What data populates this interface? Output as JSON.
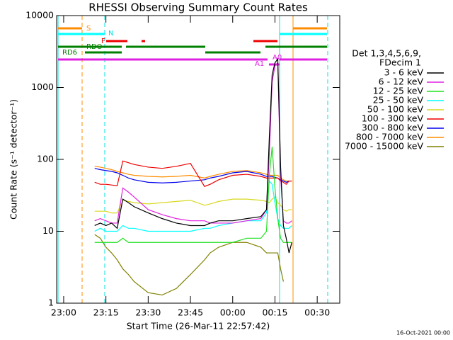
{
  "chart_data": {
    "type": "line",
    "title": "RHESSI Observing Summary Count Rates",
    "x_label": "Start Time (26-Mar-11 22:57:42)",
    "y_label": "Count Rate (s⁻¹ detector⁻¹)",
    "legend_title": [
      "Det 1,3,4,5,6,9,",
      "FDecim 1"
    ],
    "footer": "16-Oct-2021 00:00",
    "flags": [
      "S",
      "N",
      "F",
      "RDO",
      "RD6",
      "A1",
      "A0"
    ],
    "log_y": true,
    "xlim": [
      -2.5,
      98
    ],
    "ylim": [
      1,
      10000
    ],
    "xticks": [
      {
        "value": 0,
        "label": "23:00"
      },
      {
        "value": 15,
        "label": "23:15"
      },
      {
        "value": 30,
        "label": "23:30"
      },
      {
        "value": 45,
        "label": "23:45"
      },
      {
        "value": 60,
        "label": "00:00"
      },
      {
        "value": 75,
        "label": "00:15"
      },
      {
        "value": 90,
        "label": "00:30"
      }
    ],
    "yticks": [
      1,
      10,
      100,
      1000,
      10000
    ],
    "x": [
      11,
      13,
      15,
      17,
      19,
      21,
      23,
      25,
      30,
      35,
      40,
      45,
      50,
      52,
      55,
      60,
      65,
      70,
      72,
      73,
      74,
      75,
      76,
      77,
      78,
      79,
      80,
      81
    ],
    "series": [
      {
        "name": "3 - 6 keV",
        "color": "#000000",
        "values": [
          12,
          13,
          12,
          13,
          11,
          28,
          25,
          22,
          18,
          15,
          13,
          12,
          12,
          13,
          14,
          14,
          15,
          16,
          20,
          200,
          1500,
          2200,
          2500,
          80,
          12,
          8,
          5,
          7
        ]
      },
      {
        "name": "6 - 12 keV",
        "color": "#e020e0",
        "values": [
          14,
          15,
          14,
          13,
          13,
          40,
          35,
          30,
          20,
          17,
          15,
          14,
          14,
          13,
          13,
          13,
          14,
          15,
          20,
          120,
          1200,
          2000,
          2200,
          60,
          14,
          13,
          13,
          14
        ]
      },
      {
        "name": "12 - 25 keV",
        "color": "#20e020",
        "values": [
          7,
          7,
          7,
          7,
          7,
          8,
          7,
          7,
          7,
          7,
          7,
          7,
          7,
          7,
          7,
          7,
          8,
          8,
          10,
          60,
          150,
          40,
          15,
          8,
          7,
          7,
          7,
          7
        ]
      },
      {
        "name": "25 - 50 keV",
        "color": "#00ffff",
        "values": [
          10,
          11,
          10,
          10,
          10,
          12,
          11,
          11,
          10,
          10,
          10,
          10,
          11,
          11,
          12,
          13,
          14,
          14,
          18,
          50,
          45,
          25,
          15,
          12,
          11,
          11,
          11,
          12
        ]
      },
      {
        "name": "50 - 100 keV",
        "color": "#d8d820",
        "values": [
          19,
          19,
          19,
          18,
          18,
          27,
          26,
          25,
          24,
          25,
          26,
          27,
          23,
          24,
          26,
          28,
          28,
          27,
          26,
          25,
          28,
          30,
          25,
          23,
          20,
          19,
          20,
          20
        ]
      },
      {
        "name": "100 - 300 keV",
        "color": "#ee0000",
        "values": [
          48,
          45,
          45,
          44,
          43,
          95,
          90,
          85,
          78,
          75,
          80,
          88,
          42,
          45,
          52,
          60,
          62,
          58,
          55,
          55,
          55,
          55,
          55,
          50,
          48,
          45,
          50,
          50
        ]
      },
      {
        "name": "300 - 800 keV",
        "color": "#0000ee",
        "values": [
          75,
          72,
          70,
          68,
          65,
          60,
          55,
          52,
          48,
          47,
          48,
          50,
          52,
          55,
          58,
          65,
          68,
          62,
          58,
          58,
          58,
          56,
          55,
          52,
          50,
          48,
          50,
          50
        ]
      },
      {
        "name": "800 - 7000 keV",
        "color": "#ff8c00",
        "values": [
          80,
          78,
          75,
          72,
          68,
          65,
          62,
          60,
          58,
          57,
          58,
          60,
          55,
          58,
          62,
          68,
          70,
          65,
          62,
          60,
          60,
          60,
          60,
          55,
          52,
          50,
          50,
          50
        ]
      },
      {
        "name": "7000 - 15000 keV",
        "color": "#808000",
        "values": [
          9,
          8,
          6,
          5,
          4,
          3,
          2.5,
          2,
          1.4,
          1.3,
          1.6,
          2.5,
          4,
          5,
          6,
          7,
          7,
          6,
          5,
          5,
          5,
          5,
          5,
          3,
          2,
          null,
          null,
          null
        ]
      }
    ]
  }
}
